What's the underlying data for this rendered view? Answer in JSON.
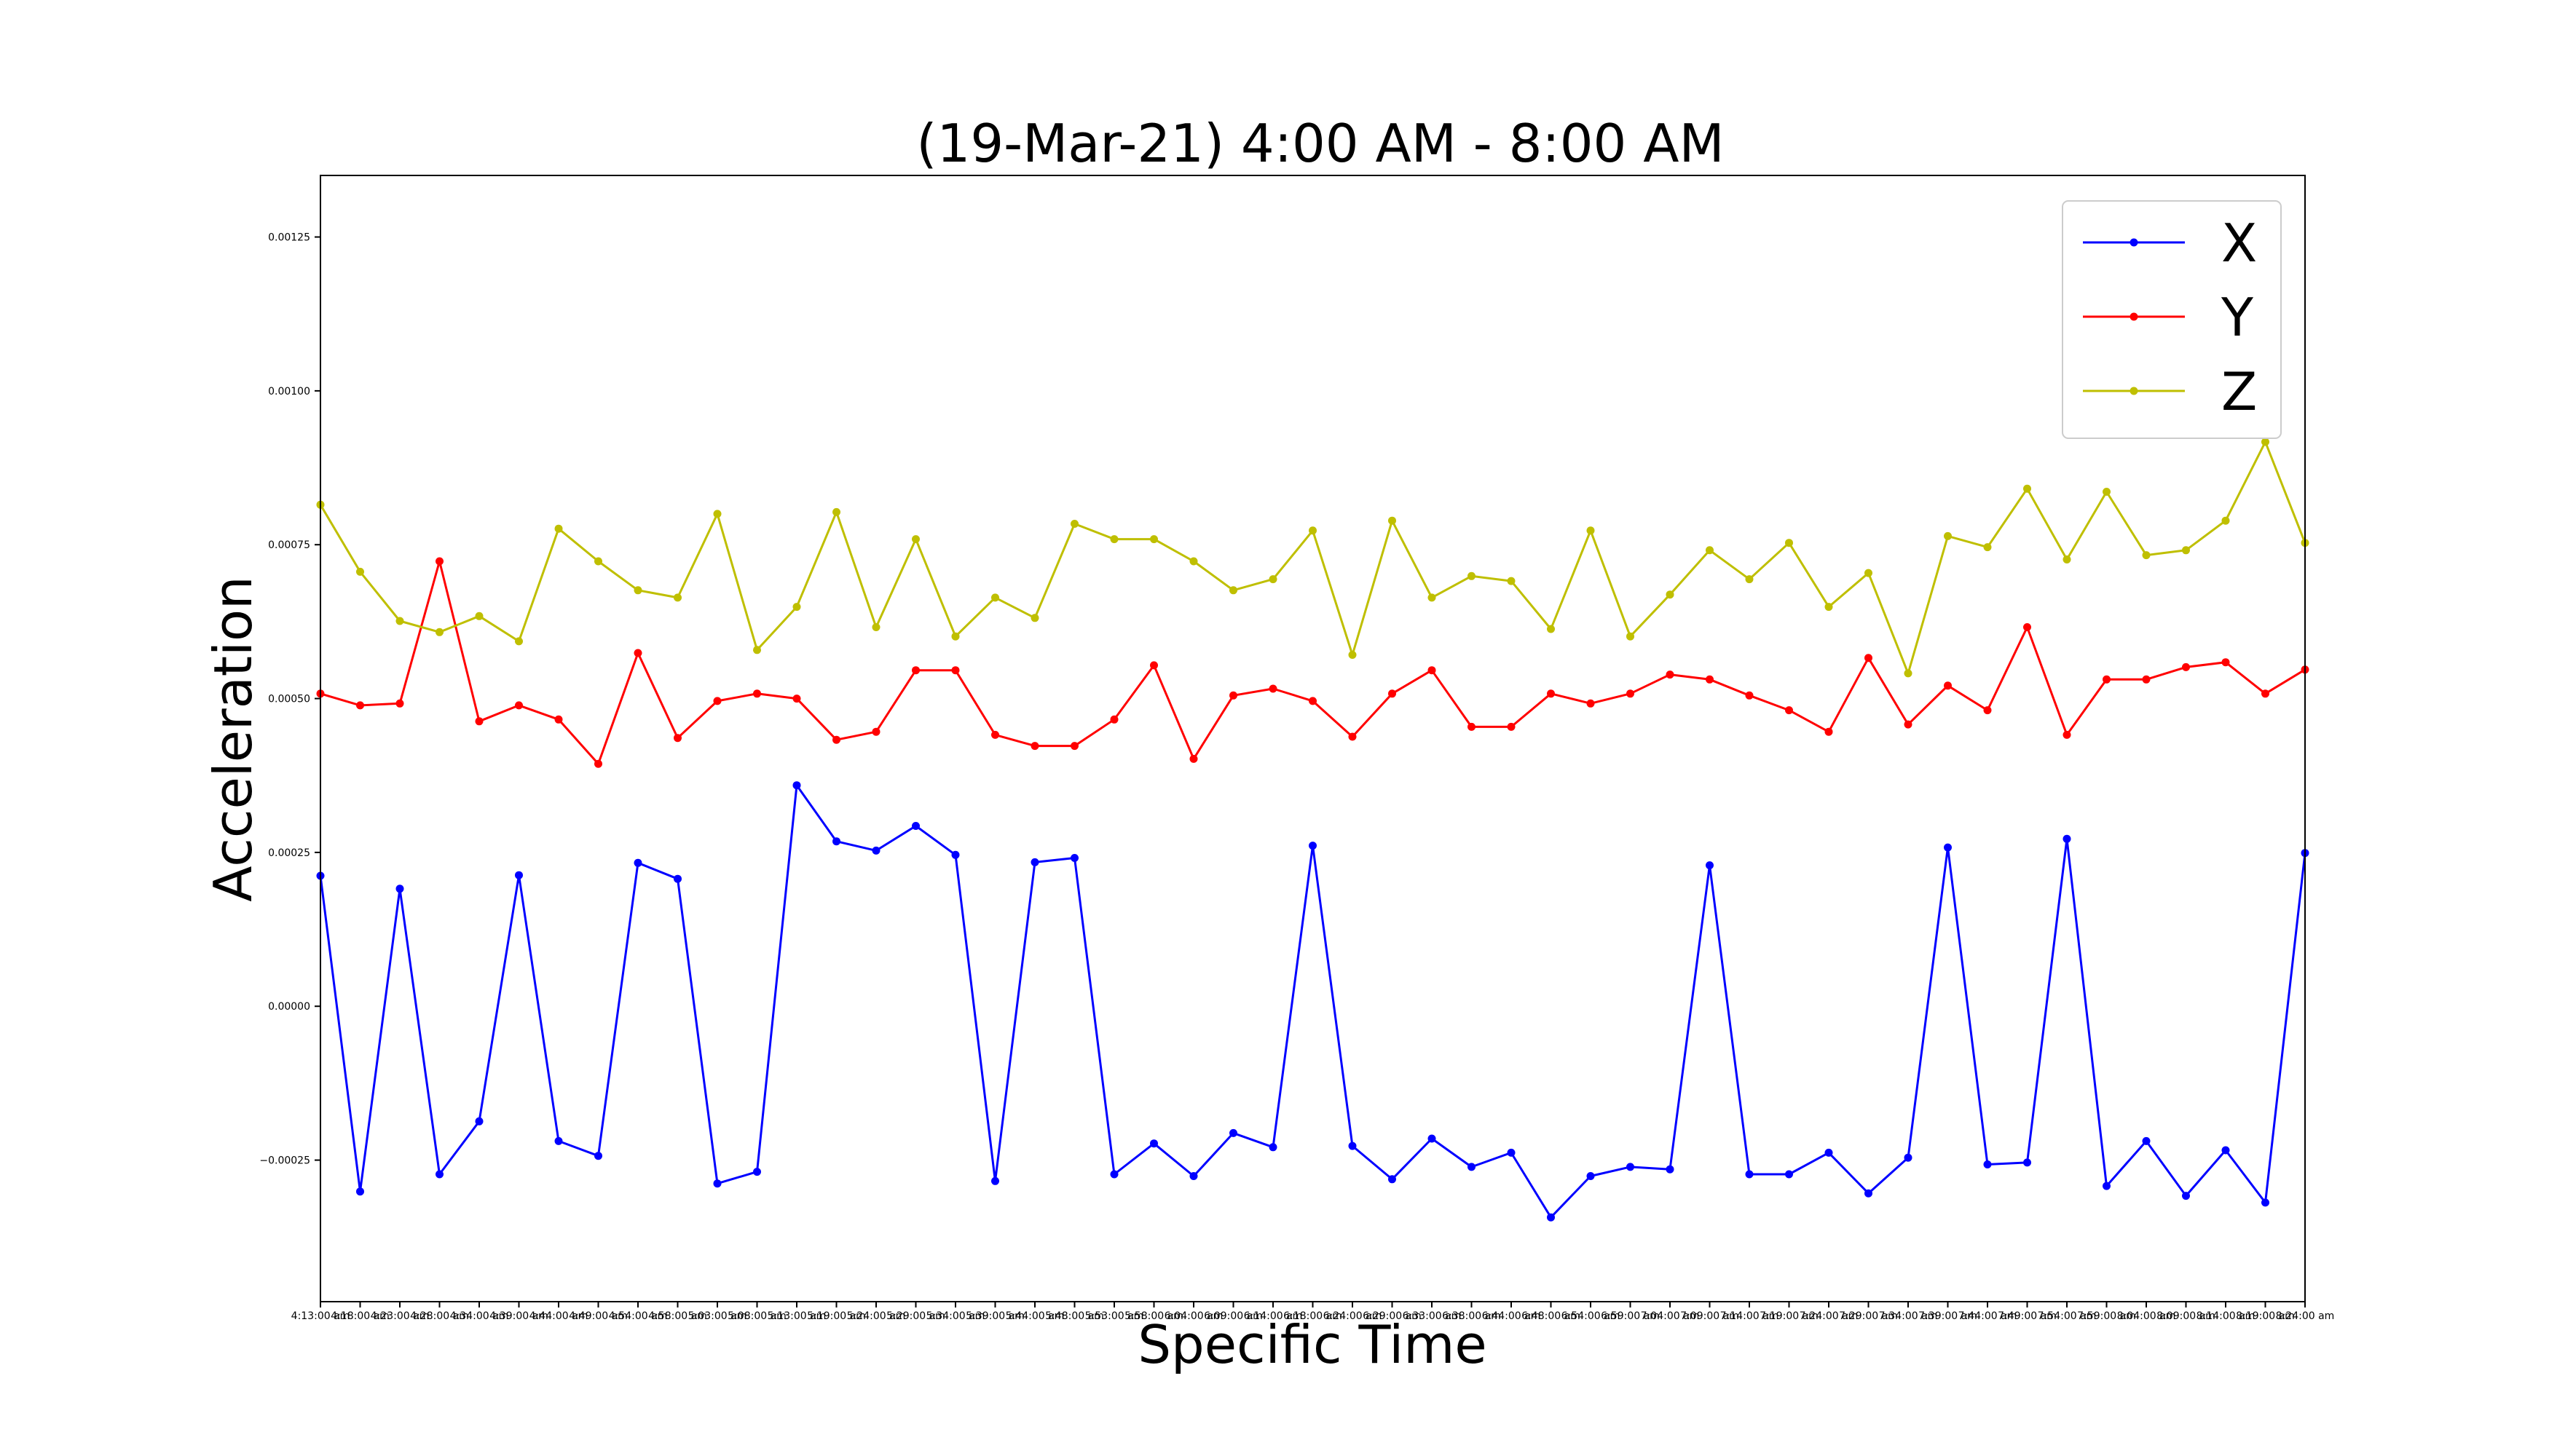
{
  "chart_data": {
    "type": "line",
    "title": "(19-Mar-21) 4:00 AM - 8:00 AM",
    "xlabel": "Specific Time",
    "ylabel": "Acceleration",
    "ylim": [
      -0.00048,
      0.00135
    ],
    "yticks": [
      -0.00025,
      0.0,
      0.00025,
      0.0005,
      0.00075,
      0.001,
      0.00125
    ],
    "ytick_labels": [
      "−0.00025",
      "0.00000",
      "0.00025",
      "0.00050",
      "0.00075",
      "0.00100",
      "0.00125"
    ],
    "grid": false,
    "legend_position": "top-right",
    "x_first_label": "4:13:00 am",
    "x_last_label": "8:24:00 am",
    "x": [
      "4:13:00 am",
      "4:18:00 am",
      "4:23:00 am",
      "4:28:00 am",
      "4:34:00 am",
      "4:39:00 am",
      "4:44:00 am",
      "4:49:00 am",
      "4:54:00 am",
      "4:58:00 am",
      "5:03:00 am",
      "5:08:00 am",
      "5:13:00 am",
      "5:19:00 am",
      "5:24:00 am",
      "5:29:00 am",
      "5:34:00 am",
      "5:39:00 am",
      "5:44:00 am",
      "5:48:00 am",
      "5:53:00 am",
      "5:58:00 am",
      "6:04:00 am",
      "6:09:00 am",
      "6:14:00 am",
      "6:18:00 am",
      "6:24:00 am",
      "6:29:00 am",
      "6:33:00 am",
      "6:38:00 am",
      "6:44:00 am",
      "6:48:00 am",
      "6:54:00 am",
      "6:59:00 am",
      "7:04:00 am",
      "7:09:00 am",
      "7:14:00 am",
      "7:19:00 am",
      "7:24:00 am",
      "7:29:00 am",
      "7:34:00 am",
      "7:39:00 am",
      "7:44:00 am",
      "7:49:00 am",
      "7:54:00 am",
      "7:59:00 am",
      "8:04:00 am",
      "8:09:00 am",
      "8:14:00 am",
      "8:19:00 am",
      "8:24:00 am"
    ],
    "series": [
      {
        "name": "X",
        "color": "#0000ff",
        "values": [
          0.000212,
          -0.000301,
          0.000191,
          -0.000273,
          -0.000187,
          0.000213,
          -0.000219,
          -0.000243,
          0.000233,
          0.000207,
          -0.000288,
          -0.000269,
          0.000359,
          0.000268,
          0.000253,
          0.000293,
          0.000246,
          -0.000284,
          0.000234,
          0.000241,
          -0.000273,
          -0.000223,
          -0.000276,
          -0.000206,
          -0.000229,
          0.000261,
          -0.000227,
          -0.000281,
          -0.000215,
          -0.000261,
          -0.000238,
          -0.000343,
          -0.000276,
          -0.000261,
          -0.000265,
          0.000229,
          -0.000273,
          -0.000273,
          -0.000238,
          -0.000304,
          -0.000246,
          0.000258,
          -0.000257,
          -0.000254,
          0.000272,
          -0.000292,
          -0.000219,
          -0.000308,
          -0.000234,
          -0.000319,
          0.000249
        ]
      },
      {
        "name": "Y",
        "color": "#ff0000",
        "values": [
          0.000508,
          0.000489,
          0.000492,
          0.000723,
          0.000463,
          0.000489,
          0.000466,
          0.000394,
          0.000574,
          0.000436,
          0.000496,
          0.000508,
          0.0005,
          0.000433,
          0.000446,
          0.000546,
          0.000546,
          0.000441,
          0.000423,
          0.000423,
          0.000466,
          0.000554,
          0.000402,
          0.000505,
          0.000516,
          0.000496,
          0.000438,
          0.000508,
          0.000546,
          0.000454,
          0.000454,
          0.000508,
          0.000492,
          0.000508,
          0.000539,
          0.000531,
          0.000505,
          0.000481,
          0.000446,
          0.000566,
          0.000458,
          0.000521,
          0.000481,
          0.000616,
          0.000441,
          0.000531,
          0.000531,
          0.000551,
          0.000559,
          0.000508,
          0.000547
        ]
      },
      {
        "name": "Z",
        "color": "#bfbf00",
        "values": [
          0.000815,
          0.000706,
          0.000626,
          0.000608,
          0.000634,
          0.000593,
          0.000776,
          0.000723,
          0.000676,
          0.000664,
          0.0008,
          0.000579,
          0.000649,
          0.000803,
          0.000616,
          0.000759,
          0.000601,
          0.000664,
          0.000631,
          0.000784,
          0.000759,
          0.000759,
          0.000723,
          0.000676,
          0.000694,
          0.000773,
          0.000571,
          0.000789,
          0.000664,
          0.000699,
          0.000691,
          0.000613,
          0.000773,
          0.000601,
          0.000669,
          0.000741,
          0.000694,
          0.000753,
          0.000649,
          0.000704,
          0.000541,
          0.000764,
          0.000746,
          0.000841,
          0.000726,
          0.000836,
          0.000733,
          0.000741,
          0.000789,
          0.000917,
          0.000753
        ]
      }
    ]
  }
}
